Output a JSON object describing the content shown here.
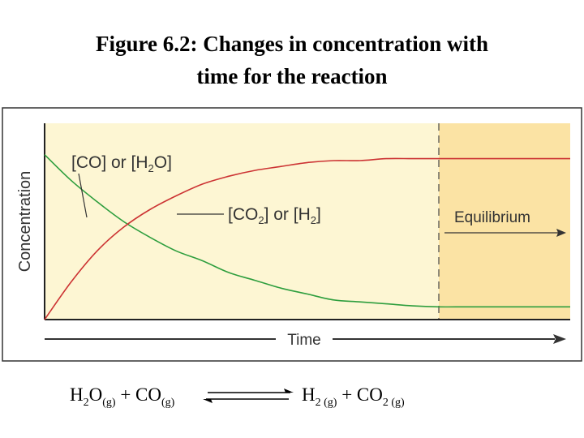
{
  "figure": {
    "title_line1": "Figure 6.2: Changes in concentration with",
    "title_line2": "time for the reaction"
  },
  "chart_data": {
    "type": "line",
    "xlabel": "Time",
    "ylabel": "Concentration",
    "ylim": [
      0,
      1
    ],
    "grid": false,
    "x": [
      0,
      0.05,
      0.1,
      0.15,
      0.2,
      0.25,
      0.3,
      0.35,
      0.4,
      0.45,
      0.5,
      0.55,
      0.6,
      0.65,
      0.7,
      0.75,
      0.8,
      0.85,
      0.9,
      0.95,
      1
    ],
    "series": [
      {
        "name": "[CO] or [H2O]",
        "color": "#2e9e3e",
        "values": [
          0.84,
          0.71,
          0.6,
          0.5,
          0.42,
          0.35,
          0.3,
          0.24,
          0.2,
          0.16,
          0.13,
          0.1,
          0.09,
          0.08,
          0.07,
          0.065,
          0.065,
          0.065,
          0.065,
          0.065,
          0.065
        ]
      },
      {
        "name": "[CO2] or [H2]",
        "color": "#cc3333",
        "values": [
          0.0,
          0.19,
          0.35,
          0.47,
          0.56,
          0.63,
          0.69,
          0.73,
          0.76,
          0.78,
          0.8,
          0.81,
          0.81,
          0.82,
          0.82,
          0.82,
          0.82,
          0.82,
          0.82,
          0.82,
          0.82
        ]
      }
    ],
    "equilibrium_start_x": 0.75,
    "annotations": {
      "reactant_label": {
        "main1": "[CO] or [H",
        "sub": "2",
        "main2": "O]"
      },
      "product_label": {
        "main1": "[CO",
        "sub1": "2",
        "main2": "] or [H",
        "sub2": "2",
        "main3": "]"
      },
      "equilibrium": "Equilibrium"
    },
    "colors": {
      "plot_background": "#fdf6d3",
      "equilibrium_background": "#fbe3a4",
      "axis": "#222222"
    }
  },
  "equation": {
    "r1": "H",
    "r1_sub1": "2",
    "r1_mid": "O",
    "r1_state": "(g)",
    "plus1": " + CO",
    "r2_state": "(g)",
    "p1": "H",
    "p1_sub": "2",
    "p1_state": " (g)",
    "plus2": " + CO",
    "p2_sub": "2",
    "p2_state": " (g)"
  }
}
